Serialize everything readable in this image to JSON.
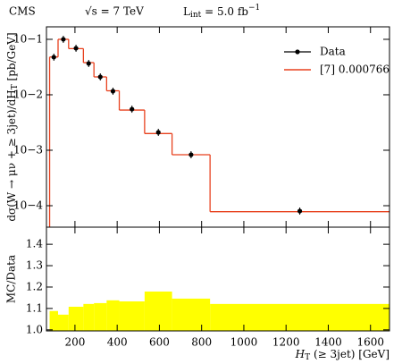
{
  "header": {
    "experiment": "CMS",
    "energy": "√s = 7 TeV",
    "lumi": [
      "L",
      "int",
      " = 5.0 fb",
      "−1"
    ]
  },
  "chart_data": [
    {
      "type": "histogram",
      "bins": [
        80,
        120,
        170,
        240,
        290,
        350,
        410,
        530,
        660,
        840,
        1690
      ],
      "series": [
        {
          "name": "Data",
          "color": "#000000",
          "style": "points",
          "values": [
            0.0476,
            0.1,
            0.069,
            0.0367,
            0.021,
            0.0116,
            0.0055,
            0.0021,
            0.00083,
            8e-05
          ]
        },
        {
          "name": "[7] 0.000766",
          "color": "#e8411e",
          "style": "step",
          "values": [
            0.048,
            0.1,
            0.068,
            0.038,
            0.021,
            0.0118,
            0.0053,
            0.002,
            0.00083,
            7.8e-05
          ]
        }
      ],
      "log_y": true,
      "xlim": [
        65,
        1690
      ],
      "ylim": [
        4.1e-05,
        0.168
      ],
      "yticks": [
        {
          "value": 0.0001,
          "label": "10−4"
        },
        {
          "value": 0.001,
          "label": "10−3"
        },
        {
          "value": 0.01,
          "label": "10−2"
        },
        {
          "value": 0.1,
          "label": "10−1"
        }
      ],
      "ylabel": [
        "dσ(W → μν + ≥ 3jet)/dH",
        "T",
        " [pb/GeV]"
      ],
      "legend": "upper right"
    },
    {
      "type": "histogram",
      "bins": [
        80,
        120,
        170,
        240,
        290,
        350,
        410,
        530,
        660,
        840,
        1690
      ],
      "values": [
        1.088,
        1.071,
        1.108,
        1.121,
        1.125,
        1.138,
        1.133,
        1.179,
        1.146,
        1.121
      ],
      "color": "#ffff00",
      "xlim": [
        65,
        1690
      ],
      "ylim": [
        0.995,
        1.48
      ],
      "xticks": [
        200,
        400,
        600,
        800,
        1000,
        1200,
        1400,
        1600
      ],
      "yticks": [
        {
          "value": 1,
          "label": "1.0"
        },
        1.1,
        1.2,
        1.3,
        1.4
      ],
      "ylabel": "MC/Data",
      "xlabel": [
        "H",
        "T",
        " (≥ 3jet) [GeV]"
      ]
    }
  ]
}
